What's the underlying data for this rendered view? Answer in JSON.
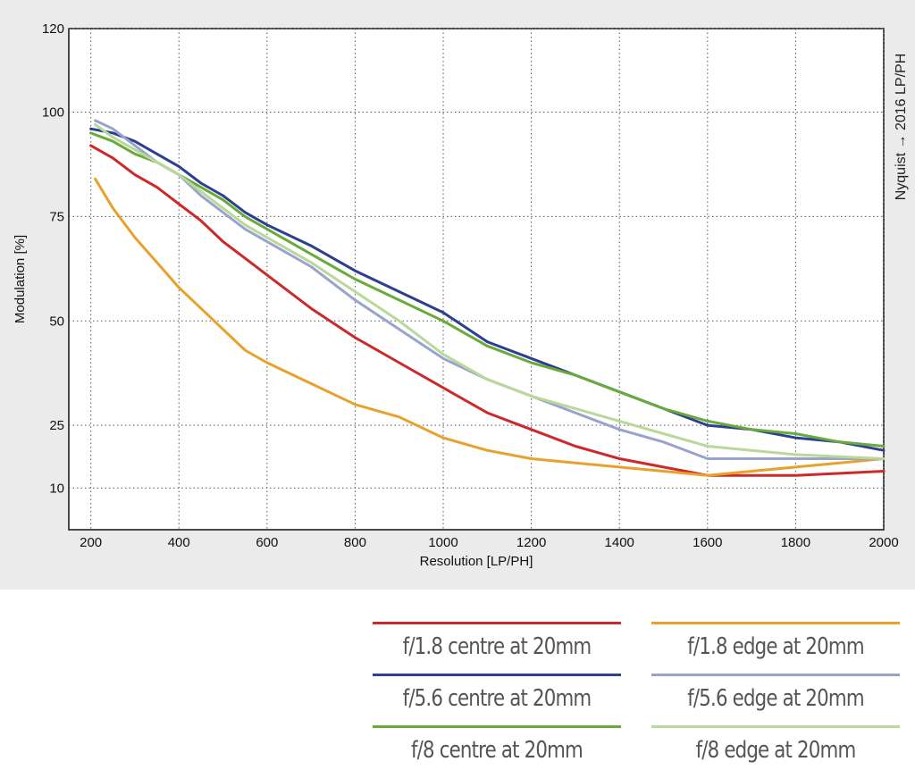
{
  "chart_data": {
    "type": "line",
    "xlabel": "Resolution [LP/PH]",
    "ylabel": "Modulation [%]",
    "xlim": [
      150,
      2000
    ],
    "ylim": [
      0,
      120
    ],
    "xticks": [
      200,
      400,
      600,
      800,
      1000,
      1200,
      1400,
      1600,
      1800,
      2000
    ],
    "yticks": [
      10,
      25,
      50,
      75,
      100,
      120
    ],
    "grid": true,
    "annotation": "Nyquist → 2016 LP/PH",
    "legend_position": "bottom",
    "series": [
      {
        "name": "f/1.8 centre at 20mm",
        "color": "#cc2a2a",
        "x": [
          200,
          250,
          300,
          350,
          400,
          450,
          500,
          550,
          600,
          700,
          800,
          900,
          1000,
          1100,
          1200,
          1300,
          1400,
          1500,
          1600,
          1700,
          1800,
          1900,
          2000
        ],
        "y": [
          92,
          89,
          85,
          82,
          78,
          74,
          69,
          65,
          61,
          53,
          46,
          40,
          34,
          28,
          24,
          20,
          17,
          15,
          13,
          13,
          13,
          13.5,
          14
        ]
      },
      {
        "name": "f/1.8 edge at 20mm",
        "color": "#e8a22c",
        "x": [
          210,
          250,
          300,
          350,
          400,
          450,
          500,
          550,
          600,
          700,
          800,
          900,
          1000,
          1100,
          1200,
          1300,
          1400,
          1500,
          1600,
          1700,
          1800,
          1900,
          2000
        ],
        "y": [
          84,
          77,
          70,
          64,
          58,
          53,
          48,
          43,
          40,
          35,
          30,
          27,
          22,
          19,
          17,
          16,
          15,
          14,
          13,
          14,
          15,
          16,
          17
        ]
      },
      {
        "name": "f/5.6 centre at 20mm",
        "color": "#2d3f8f",
        "x": [
          200,
          250,
          300,
          350,
          400,
          450,
          500,
          550,
          600,
          700,
          800,
          900,
          1000,
          1100,
          1200,
          1300,
          1400,
          1500,
          1600,
          1700,
          1800,
          1900,
          2000
        ],
        "y": [
          96,
          95,
          93,
          90,
          87,
          83,
          80,
          76,
          73,
          68,
          62,
          57,
          52,
          45,
          41,
          37,
          33,
          29,
          25,
          24,
          22,
          21,
          19
        ]
      },
      {
        "name": "f/5.6 edge at 20mm",
        "color": "#9aa3cc",
        "x": [
          210,
          250,
          300,
          350,
          400,
          450,
          500,
          550,
          600,
          700,
          800,
          900,
          1000,
          1100,
          1200,
          1300,
          1400,
          1500,
          1600,
          1700,
          1800,
          1900,
          2000
        ],
        "y": [
          98,
          96,
          92,
          88,
          85,
          80,
          76,
          72,
          69,
          63,
          55,
          48,
          41,
          36,
          32,
          28,
          24,
          21,
          17,
          17,
          17,
          17,
          17
        ]
      },
      {
        "name": "f/8 centre at 20mm",
        "color": "#6aaa3c",
        "x": [
          200,
          250,
          300,
          350,
          400,
          450,
          500,
          550,
          600,
          700,
          800,
          900,
          1000,
          1100,
          1200,
          1300,
          1400,
          1500,
          1600,
          1700,
          1800,
          1900,
          2000
        ],
        "y": [
          95,
          93,
          90,
          88,
          85,
          82,
          79,
          75,
          72,
          66,
          60,
          55,
          50,
          44,
          40,
          37,
          33,
          29,
          26,
          24,
          23,
          21,
          20
        ]
      },
      {
        "name": "f/8 edge at 20mm",
        "color": "#b8d99a",
        "x": [
          210,
          250,
          300,
          350,
          400,
          450,
          500,
          550,
          600,
          700,
          800,
          900,
          1000,
          1100,
          1200,
          1300,
          1400,
          1500,
          1600,
          1700,
          1800,
          1900,
          2000
        ],
        "y": [
          97,
          94,
          91,
          88,
          85,
          81,
          77,
          73,
          70,
          64,
          57,
          50,
          42,
          36,
          32,
          29,
          26,
          23,
          20,
          19,
          18,
          17.5,
          17
        ]
      }
    ]
  }
}
